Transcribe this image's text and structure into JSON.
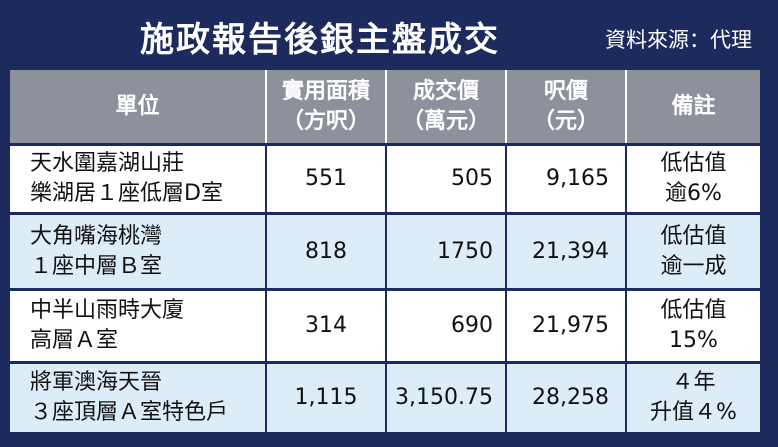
{
  "header": {
    "title": "施政報告後銀主盤成交",
    "source": "資料來源：代理"
  },
  "table": {
    "columns": [
      [
        "單位"
      ],
      [
        "實用面積",
        "（方呎）"
      ],
      [
        "成交價",
        "（萬元）"
      ],
      [
        "呎價",
        "（元）"
      ],
      [
        "備註"
      ]
    ],
    "rows": [
      [
        [
          "天水圍嘉湖山莊",
          "樂湖居１座低層D室"
        ],
        [
          "551"
        ],
        [
          "505"
        ],
        [
          "9,165"
        ],
        [
          "低估值",
          "逾6%"
        ]
      ],
      [
        [
          "大角嘴海桃灣",
          "１座中層Ｂ室"
        ],
        [
          "818"
        ],
        [
          "1750"
        ],
        [
          "21,394"
        ],
        [
          "低估值",
          "逾一成"
        ]
      ],
      [
        [
          "中半山雨時大廈",
          "高層Ａ室"
        ],
        [
          "314"
        ],
        [
          "690"
        ],
        [
          "21,975"
        ],
        [
          "低估值",
          "15%"
        ]
      ],
      [
        [
          "將軍澳海天晉",
          "３座頂層Ａ室特色戶"
        ],
        [
          "1,115"
        ],
        [
          "3,150.75"
        ],
        [
          "28,258"
        ],
        [
          "４年",
          "升值４%"
        ]
      ]
    ]
  }
}
